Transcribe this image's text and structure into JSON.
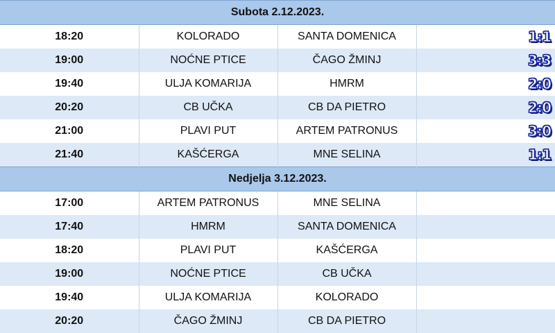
{
  "days": [
    {
      "title": "Subota 2.12.2023.",
      "matches": [
        {
          "time": "18:20",
          "home": "KOLORADO",
          "away": "SANTA DOMENICA",
          "score": "1:1"
        },
        {
          "time": "19:00",
          "home": "NOĆNE PTICE",
          "away": "ČAGO ŽMINJ",
          "score": "3:3"
        },
        {
          "time": "19:40",
          "home": "ULJA KOMARIJA",
          "away": "HMRM",
          "score": "2:0"
        },
        {
          "time": "20:20",
          "home": "CB UČKA",
          "away": "CB DA PIETRO",
          "score": "2:0"
        },
        {
          "time": "21:00",
          "home": "PLAVI PUT",
          "away": "ARTEM PATRONUS",
          "score": "3:0"
        },
        {
          "time": "21:40",
          "home": "KAŠĆERGA",
          "away": "MNE SELINA",
          "score": "1:1"
        }
      ]
    },
    {
      "title": "Nedjelja 3.12.2023.",
      "matches": [
        {
          "time": "17:00",
          "home": "ARTEM PATRONUS",
          "away": "MNE SELINA",
          "score": ""
        },
        {
          "time": "17:40",
          "home": "HMRM",
          "away": "SANTA DOMENICA",
          "score": ""
        },
        {
          "time": "18:20",
          "home": "PLAVI PUT",
          "away": "KAŠĆERGA",
          "score": ""
        },
        {
          "time": "19:00",
          "home": "NOĆNE PTICE",
          "away": "CB UČKA",
          "score": ""
        },
        {
          "time": "19:40",
          "home": "ULJA KOMARIJA",
          "away": "KOLORADO",
          "score": ""
        },
        {
          "time": "20:20",
          "home": "ČAGO ŽMINJ",
          "away": "CB DA PIETRO",
          "score": ""
        }
      ]
    }
  ]
}
